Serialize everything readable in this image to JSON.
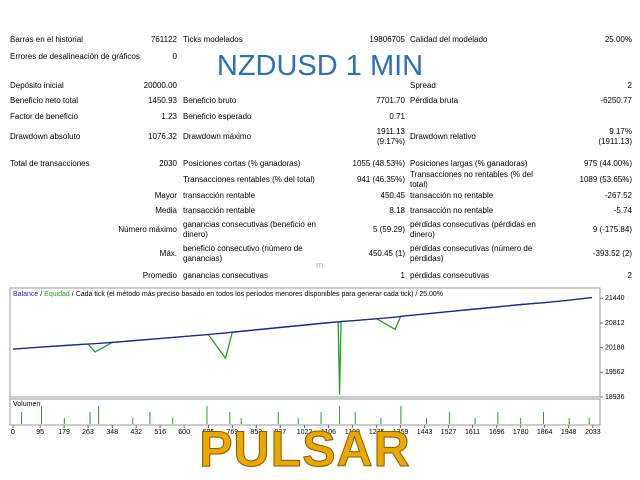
{
  "report": {
    "title": "NZDUSD 1 MIN",
    "footer": "PULSAR",
    "watermark": "m",
    "rows": [
      [
        "Barras en el historial",
        "761122",
        "Ticks modelados",
        "19806705",
        "Calidad del modelado",
        "25.00%"
      ],
      [
        "Errores de desalineación de gráficos",
        "0",
        null,
        null,
        null,
        null
      ],
      [
        "Depósito inicial",
        "20000.00",
        null,
        null,
        "Spread",
        "2"
      ],
      [
        "Beneficio neto total",
        "1450.93",
        "Beneficio bruto",
        "7701.70",
        "Pérdida bruta",
        "-6250.77"
      ],
      [
        "Factor de beneficio",
        "1.23",
        "Beneficio esperado",
        "0.71",
        null,
        null
      ],
      [
        "Drawdown absoluto",
        "1076.32",
        "Drawdown máximo",
        "1911.13 (9.17%)",
        "Drawdown relativo",
        "9.17% (1911.13)"
      ],
      [
        "Total de transacciones",
        "2030",
        "Posiciones cortas (% ganadoras)",
        "1055 (48.53%)",
        "Posiciones largas (% ganadoras)",
        "975 (44.00%)"
      ],
      [
        null,
        null,
        "Transacciones rentables (% del total)",
        "941 (46.35%)",
        "Transacciones no rentables (% del total)",
        "1089 (53.65%)"
      ],
      [
        "Mayor",
        "transacción rentable",
        "450.45",
        "transacción no rentable",
        "-267.52"
      ],
      [
        "Media",
        "transacción rentable",
        "8.18",
        "transacción no rentable",
        "-5.74"
      ],
      [
        "Número máximo",
        "ganancias consecutivas (beneficio en dinero)",
        "5 (59.29)",
        "pérdidas consecutivas (pérdidas en dinero)",
        "9 (-175.84)"
      ],
      [
        "Máx.",
        "beneficio consecutivo (número de ganancias)",
        "450.45 (1)",
        "pérdidas consecutivas (número de pérdidas)",
        "-393.52 (2)"
      ],
      [
        "Promedio",
        "ganancias consecutivas",
        "1",
        "pérdidas consecutivas",
        "2"
      ]
    ]
  },
  "chart_data": {
    "type": "line",
    "description": "Cada tick (el método más preciso basado en todos los períodos menores disponibles para generar cada tick)",
    "quality": "25.00%",
    "x": [
      0,
      95,
      179,
      263,
      288,
      348,
      432,
      516,
      600,
      685,
      745,
      769,
      853,
      937,
      1022,
      1106,
      1140,
      1145,
      1150,
      1190,
      1275,
      1340,
      1359,
      1443,
      1527,
      1611,
      1696,
      1780,
      1864,
      1948,
      2030
    ],
    "series": [
      {
        "name": "Balance",
        "color": "#1f1fa8",
        "values": [
          20150,
          20200,
          20240,
          20280,
          20290,
          20320,
          20370,
          20420,
          20470,
          20520,
          20560,
          20580,
          20640,
          20700,
          20760,
          20820,
          20840,
          20840,
          20850,
          20870,
          20920,
          20960,
          20980,
          21040,
          21100,
          21160,
          21220,
          21280,
          21330,
          21390,
          21460
        ]
      },
      {
        "name": "Equidad",
        "color": "#22a022",
        "values": [
          20150,
          20200,
          20240,
          20280,
          20080,
          20320,
          20370,
          20420,
          20470,
          20520,
          19920,
          20580,
          20640,
          20700,
          20760,
          20820,
          20840,
          19000,
          20850,
          20870,
          20920,
          20650,
          20980,
          21040,
          21100,
          21160,
          21220,
          21280,
          21330,
          21390,
          21460
        ]
      }
    ],
    "xlim": [
      0,
      2030
    ],
    "xticks": [
      0,
      95,
      179,
      263,
      348,
      432,
      516,
      600,
      685,
      769,
      853,
      937,
      1022,
      1106,
      1190,
      1275,
      1359,
      1443,
      1527,
      1611,
      1696,
      1780,
      1864,
      1948,
      2033
    ],
    "ylim": [
      18936,
      21700
    ],
    "yticks": [
      21440,
      20812,
      20188,
      19562,
      18936
    ],
    "volume": {
      "label": "Volumen",
      "color": "#22a022",
      "x": [
        30,
        100,
        180,
        270,
        300,
        420,
        480,
        560,
        680,
        760,
        800,
        930,
        1000,
        1080,
        1145,
        1200,
        1290,
        1360,
        1450,
        1530,
        1620,
        1700,
        1780,
        1860,
        1950,
        2020
      ],
      "values": [
        2,
        3,
        1,
        2,
        3,
        1,
        2,
        1,
        3,
        2,
        1,
        2,
        1,
        2,
        3,
        2,
        1,
        3,
        1,
        2,
        1,
        2,
        1,
        2,
        1,
        1
      ]
    }
  }
}
